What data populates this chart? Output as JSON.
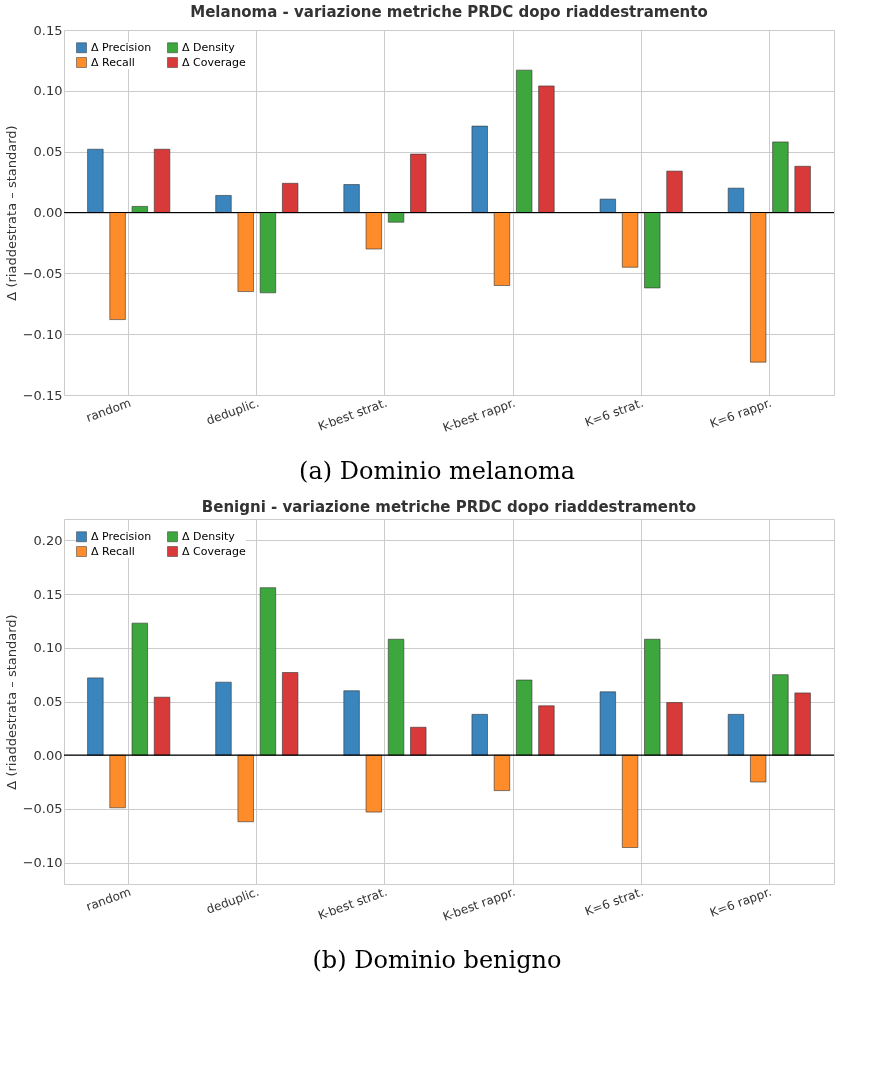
{
  "chart_data": [
    {
      "type": "bar",
      "title": "Melanoma - variazione metriche PRDC dopo riaddestramento",
      "ylabel": "Δ (riaddestrata – standard)",
      "categories": [
        "random",
        "deduplic.",
        "K-best strat.",
        "K-best rappr.",
        "K=6 strat.",
        "K=6 rappr."
      ],
      "series": [
        {
          "name": "Δ Precision",
          "color": "#3a85be",
          "values": [
            0.052,
            0.014,
            0.023,
            0.071,
            0.011,
            0.02
          ]
        },
        {
          "name": "Δ Recall",
          "color": "#ff8c2a",
          "values": [
            -0.088,
            -0.065,
            -0.03,
            -0.06,
            -0.045,
            -0.123
          ]
        },
        {
          "name": "Δ Density",
          "color": "#3da63d",
          "values": [
            0.005,
            -0.066,
            -0.008,
            0.117,
            -0.062,
            0.058
          ]
        },
        {
          "name": "Δ Coverage",
          "color": "#d83a3a",
          "values": [
            0.052,
            0.024,
            0.048,
            0.104,
            0.034,
            0.038
          ]
        }
      ],
      "ylim": [
        -0.15,
        0.15
      ],
      "yticks": [
        {
          "value": -0.15,
          "label": "−0.15"
        },
        {
          "value": -0.1,
          "label": "−0.10"
        },
        {
          "value": -0.05,
          "label": "−0.05"
        },
        {
          "value": 0,
          "label": "0.00"
        },
        {
          "value": 0.05,
          "label": "0.05"
        },
        {
          "value": 0.1,
          "label": "0.10"
        },
        {
          "value": 0.15,
          "label": "0.15"
        }
      ],
      "grid": true,
      "legend": "top left",
      "ref_lines": [
        {
          "axis": "y",
          "value": 0,
          "color": "#000000"
        }
      ],
      "annotations": [
        "(a) Dominio melanoma"
      ]
    },
    {
      "type": "bar",
      "title": "Benigni - variazione metriche PRDC dopo riaddestramento",
      "ylabel": "Δ (riaddestrata – standard)",
      "categories": [
        "random",
        "deduplic.",
        "K-best strat.",
        "K-best rappr.",
        "K=6 strat.",
        "K=6 rappr."
      ],
      "series": [
        {
          "name": "Δ Precision",
          "color": "#3a85be",
          "values": [
            0.072,
            0.068,
            0.06,
            0.038,
            0.059,
            0.038
          ]
        },
        {
          "name": "Δ Recall",
          "color": "#ff8c2a",
          "values": [
            -0.049,
            -0.062,
            -0.053,
            -0.033,
            -0.086,
            -0.025
          ]
        },
        {
          "name": "Δ Density",
          "color": "#3da63d",
          "values": [
            0.123,
            0.156,
            0.108,
            0.07,
            0.108,
            0.075
          ]
        },
        {
          "name": "Δ Coverage",
          "color": "#d83a3a",
          "values": [
            0.054,
            0.077,
            0.026,
            0.046,
            0.049,
            0.058
          ]
        }
      ],
      "ylim": [
        -0.12,
        0.22
      ],
      "yticks": [
        {
          "value": -0.1,
          "label": "−0.10"
        },
        {
          "value": -0.05,
          "label": "−0.05"
        },
        {
          "value": 0,
          "label": "0.00"
        },
        {
          "value": 0.05,
          "label": "0.05"
        },
        {
          "value": 0.1,
          "label": "0.10"
        },
        {
          "value": 0.15,
          "label": "0.15"
        },
        {
          "value": 0.2,
          "label": "0.20"
        }
      ],
      "grid": true,
      "legend": "top left",
      "ref_lines": [
        {
          "axis": "y",
          "value": 0,
          "color": "#000000"
        }
      ],
      "annotations": [
        "(b) Dominio benigno"
      ]
    }
  ]
}
